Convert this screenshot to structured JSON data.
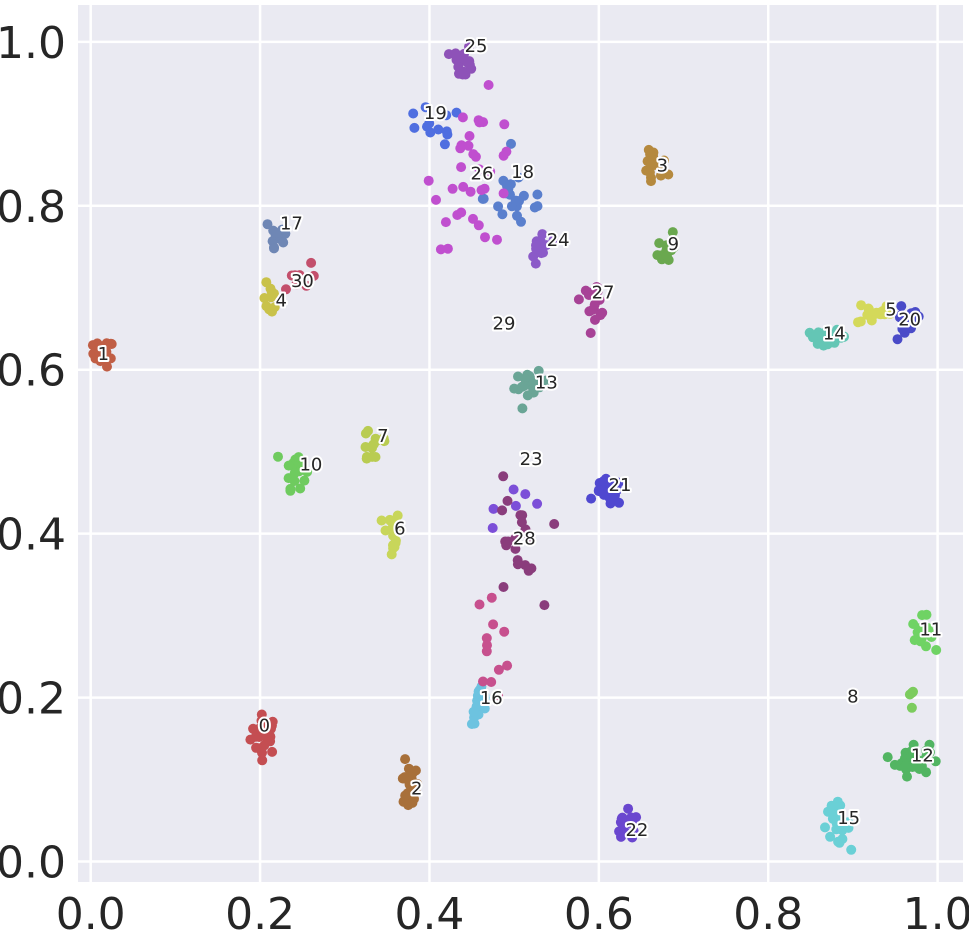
{
  "chart_data": {
    "type": "scatter",
    "title": "",
    "xlabel": "",
    "ylabel": "",
    "xlim": [
      -0.015,
      1.03
    ],
    "ylim": [
      -0.025,
      1.045
    ],
    "grid": true,
    "background": "#eaeaf2",
    "grid_color": "#ffffff",
    "x_ticks": [
      {
        "value": 0.0,
        "label": "0.0"
      },
      {
        "value": 0.2,
        "label": "0.2"
      },
      {
        "value": 0.4,
        "label": "0.4"
      },
      {
        "value": 0.6,
        "label": "0.6"
      },
      {
        "value": 0.8,
        "label": "0.8"
      },
      {
        "value": 1.0,
        "label": "1.0"
      }
    ],
    "y_ticks": [
      {
        "value": 0.0,
        "label": "0.0"
      },
      {
        "value": 0.2,
        "label": "0.2"
      },
      {
        "value": 0.4,
        "label": "0.4"
      },
      {
        "value": 0.6,
        "label": "0.6"
      },
      {
        "value": 0.8,
        "label": "0.8"
      },
      {
        "value": 1.0,
        "label": "1.0"
      }
    ],
    "clusters": [
      {
        "id": "0",
        "color": "#c44e52",
        "center": [
          0.205,
          0.155
        ],
        "spread": [
          0.008,
          0.012
        ],
        "n": 30
      },
      {
        "id": "1",
        "color": "#c05e45",
        "center": [
          0.015,
          0.62
        ],
        "spread": [
          0.006,
          0.008
        ],
        "n": 24
      },
      {
        "id": "2",
        "color": "#a8703a",
        "center": [
          0.375,
          0.09
        ],
        "spread": [
          0.006,
          0.014
        ],
        "n": 22
      },
      {
        "id": "3",
        "color": "#b5893e",
        "center": [
          0.665,
          0.845
        ],
        "spread": [
          0.008,
          0.012
        ],
        "n": 20
      },
      {
        "id": "4",
        "color": "#c9c24a",
        "center": [
          0.212,
          0.685
        ],
        "spread": [
          0.004,
          0.01
        ],
        "n": 10
      },
      {
        "id": "5",
        "color": "#d4d95a",
        "center": [
          0.925,
          0.67
        ],
        "spread": [
          0.01,
          0.008
        ],
        "n": 16
      },
      {
        "id": "6",
        "color": "#c8d65a",
        "center": [
          0.355,
          0.4
        ],
        "spread": [
          0.005,
          0.015
        ],
        "n": 18
      },
      {
        "id": "7",
        "color": "#b9cc52",
        "center": [
          0.335,
          0.51
        ],
        "spread": [
          0.01,
          0.015
        ],
        "n": 14
      },
      {
        "id": "8",
        "color": "#7ccc5e",
        "center": [
          0.97,
          0.2
        ],
        "spread": [
          0.003,
          0.01
        ],
        "n": 4
      },
      {
        "id": "9",
        "color": "#6aa84f",
        "center": [
          0.68,
          0.75
        ],
        "spread": [
          0.005,
          0.012
        ],
        "n": 14
      },
      {
        "id": "10",
        "color": "#6fcb5f",
        "center": [
          0.242,
          0.48
        ],
        "spread": [
          0.006,
          0.012
        ],
        "n": 22
      },
      {
        "id": "11",
        "color": "#6fd364",
        "center": [
          0.982,
          0.278
        ],
        "spread": [
          0.006,
          0.01
        ],
        "n": 20
      },
      {
        "id": "12",
        "color": "#52b562",
        "center": [
          0.97,
          0.125
        ],
        "spread": [
          0.01,
          0.01
        ],
        "n": 36
      },
      {
        "id": "13",
        "color": "#6aa596",
        "center": [
          0.52,
          0.58
        ],
        "spread": [
          0.01,
          0.008
        ],
        "n": 20
      },
      {
        "id": "14",
        "color": "#64c6b5",
        "center": [
          0.87,
          0.64
        ],
        "spread": [
          0.012,
          0.004
        ],
        "n": 26
      },
      {
        "id": "15",
        "color": "#6ad0d6",
        "center": [
          0.88,
          0.045
        ],
        "spread": [
          0.008,
          0.012
        ],
        "n": 22
      },
      {
        "id": "16",
        "color": "#6dc3e0",
        "center": [
          0.46,
          0.19
        ],
        "spread": [
          0.005,
          0.012
        ],
        "n": 22
      },
      {
        "id": "17",
        "color": "#6f87b5",
        "center": [
          0.22,
          0.765
        ],
        "spread": [
          0.008,
          0.015
        ],
        "n": 16
      },
      {
        "id": "18",
        "color": "#5a7fcd",
        "center": [
          0.505,
          0.81
        ],
        "spread": [
          0.02,
          0.02
        ],
        "n": 22
      },
      {
        "id": "19",
        "color": "#4f6ee0",
        "center": [
          0.4,
          0.895
        ],
        "spread": [
          0.02,
          0.012
        ],
        "n": 12
      },
      {
        "id": "20",
        "color": "#4a4bc8",
        "center": [
          0.962,
          0.655
        ],
        "spread": [
          0.01,
          0.012
        ],
        "n": 14
      },
      {
        "id": "21",
        "color": "#5048d0",
        "center": [
          0.612,
          0.45
        ],
        "spread": [
          0.008,
          0.008
        ],
        "n": 20
      },
      {
        "id": "22",
        "color": "#6a47cf",
        "center": [
          0.632,
          0.04
        ],
        "spread": [
          0.008,
          0.01
        ],
        "n": 18
      },
      {
        "id": "23",
        "color": "#7c4fd8",
        "center": [
          0.52,
          0.445
        ],
        "spread": [
          0.02,
          0.015
        ],
        "n": 6
      },
      {
        "id": "24",
        "color": "#8b5ac8",
        "center": [
          0.532,
          0.75
        ],
        "spread": [
          0.006,
          0.012
        ],
        "n": 14
      },
      {
        "id": "25",
        "color": "#8e52b8",
        "center": [
          0.44,
          0.975
        ],
        "spread": [
          0.006,
          0.01
        ],
        "n": 18
      },
      {
        "id": "26",
        "color": "#c04fcf",
        "center": [
          0.455,
          0.84
        ],
        "spread": [
          0.025,
          0.045
        ],
        "n": 34
      },
      {
        "id": "27",
        "color": "#a74296",
        "center": [
          0.595,
          0.685
        ],
        "spread": [
          0.008,
          0.01
        ],
        "n": 16
      },
      {
        "id": "28",
        "color": "#8a3d7c",
        "center": [
          0.5,
          0.38
        ],
        "spread": [
          0.015,
          0.04
        ],
        "n": 22
      },
      {
        "id": "29",
        "color": "#c7508e",
        "center": [
          0.475,
          0.27
        ],
        "spread": [
          0.01,
          0.03
        ],
        "n": 12
      },
      {
        "id": "30",
        "color": "#c34f6c",
        "center": [
          0.24,
          0.71
        ],
        "spread": [
          0.01,
          0.01
        ],
        "n": 8
      }
    ],
    "labels": [
      {
        "text": "0",
        "x": 0.205,
        "y": 0.165
      },
      {
        "text": "1",
        "x": 0.015,
        "y": 0.618
      },
      {
        "text": "2",
        "x": 0.385,
        "y": 0.088
      },
      {
        "text": "3",
        "x": 0.675,
        "y": 0.848
      },
      {
        "text": "4",
        "x": 0.225,
        "y": 0.683
      },
      {
        "text": "5",
        "x": 0.945,
        "y": 0.672
      },
      {
        "text": "6",
        "x": 0.365,
        "y": 0.405
      },
      {
        "text": "7",
        "x": 0.345,
        "y": 0.518
      },
      {
        "text": "8",
        "x": 0.9,
        "y": 0.2
      },
      {
        "text": "9",
        "x": 0.688,
        "y": 0.752
      },
      {
        "text": "10",
        "x": 0.26,
        "y": 0.483
      },
      {
        "text": "11",
        "x": 0.992,
        "y": 0.282
      },
      {
        "text": "12",
        "x": 0.982,
        "y": 0.128
      },
      {
        "text": "13",
        "x": 0.538,
        "y": 0.583
      },
      {
        "text": "14",
        "x": 0.878,
        "y": 0.643
      },
      {
        "text": "15",
        "x": 0.895,
        "y": 0.052
      },
      {
        "text": "16",
        "x": 0.473,
        "y": 0.198
      },
      {
        "text": "17",
        "x": 0.237,
        "y": 0.777
      },
      {
        "text": "18",
        "x": 0.51,
        "y": 0.84
      },
      {
        "text": "19",
        "x": 0.407,
        "y": 0.912
      },
      {
        "text": "20",
        "x": 0.967,
        "y": 0.66
      },
      {
        "text": "21",
        "x": 0.625,
        "y": 0.458
      },
      {
        "text": "22",
        "x": 0.645,
        "y": 0.037
      },
      {
        "text": "23",
        "x": 0.52,
        "y": 0.49
      },
      {
        "text": "24",
        "x": 0.552,
        "y": 0.757
      },
      {
        "text": "25",
        "x": 0.455,
        "y": 0.994
      },
      {
        "text": "26",
        "x": 0.462,
        "y": 0.838
      },
      {
        "text": "27",
        "x": 0.605,
        "y": 0.693
      },
      {
        "text": "28",
        "x": 0.512,
        "y": 0.393
      },
      {
        "text": "29",
        "x": 0.488,
        "y": 0.655
      },
      {
        "text": "30",
        "x": 0.25,
        "y": 0.707
      }
    ]
  }
}
